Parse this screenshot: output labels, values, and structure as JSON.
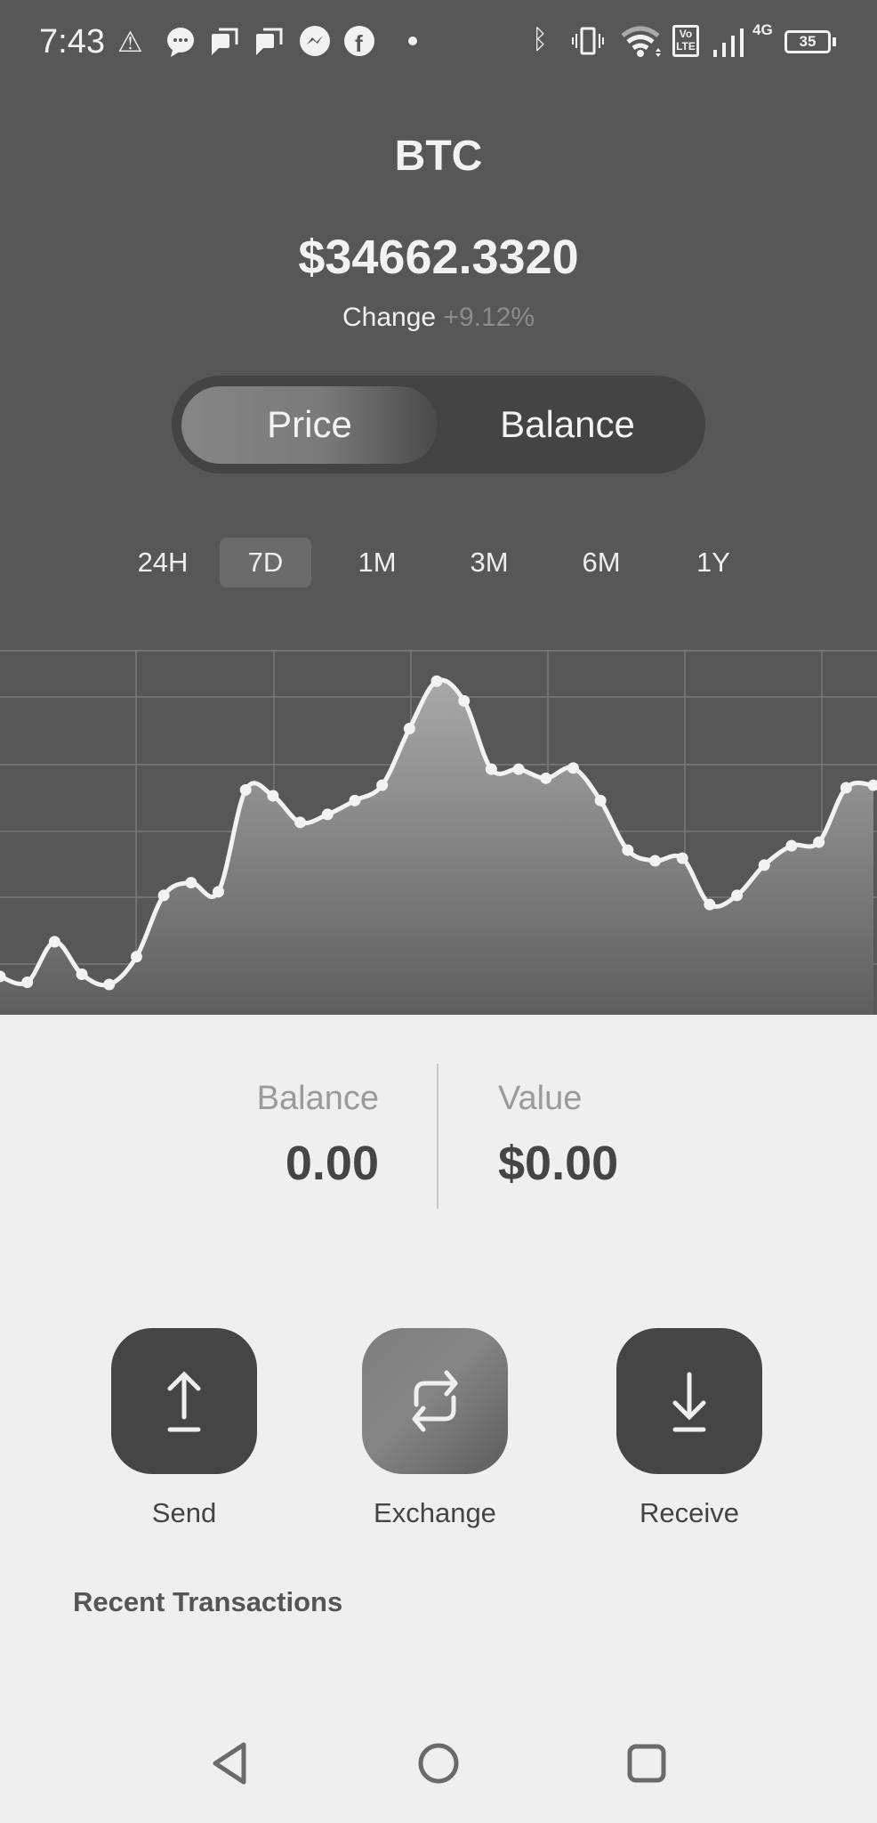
{
  "status_bar": {
    "time": "7:43",
    "left_icons": [
      "warning-icon",
      "message-icon",
      "chat-icon",
      "chat-icon",
      "messenger-icon",
      "facebook-icon",
      "dot-icon"
    ],
    "right_icons": [
      "bluetooth-icon",
      "vibrate-icon",
      "wifi-icon",
      "volte-icon",
      "signal-icon",
      "network-4g-icon",
      "battery-icon"
    ],
    "network": "4G",
    "volte": "Vo LTE",
    "battery": "35"
  },
  "header": {
    "title": "BTC",
    "price": "$34662.3320",
    "change_label": "Change",
    "change_value": "+9.12%"
  },
  "toggle": {
    "options": [
      "Price",
      "Balance"
    ],
    "selected": "Price"
  },
  "timeframes": {
    "options": [
      "24H",
      "7D",
      "1M",
      "3M",
      "6M",
      "1Y"
    ],
    "selected": "7D"
  },
  "chart_data": {
    "type": "area",
    "title": "",
    "xlabel": "",
    "ylabel": "",
    "grid": true,
    "values": [
      10.5,
      8.9,
      20.0,
      11.1,
      8.3,
      15.9,
      32.7,
      36.2,
      33.7,
      61.6,
      60.0,
      52.7,
      54.9,
      58.7,
      62.9,
      78.4,
      91.4,
      86.0,
      67.3,
      67.3,
      64.8,
      67.6,
      58.7,
      45.1,
      42.2,
      42.9,
      30.2,
      32.7,
      41.0,
      46.3,
      47.3,
      62.2,
      62.9
    ],
    "ylim": [
      0,
      100
    ],
    "colors": {
      "line": "#f2f2f2",
      "fill_top": "#a8a8a8",
      "fill_bottom": "#5e5e5e",
      "grid": "#7a7a7a"
    }
  },
  "summary": {
    "balance_label": "Balance",
    "balance_value": "0.00",
    "value_label": "Value",
    "value_value": "$0.00"
  },
  "actions": [
    {
      "label": "Send",
      "icon": "upload-icon"
    },
    {
      "label": "Exchange",
      "icon": "exchange-icon"
    },
    {
      "label": "Receive",
      "icon": "download-icon"
    }
  ],
  "recent_transactions_title": "Recent Transactions",
  "nav": [
    "back-icon",
    "home-icon",
    "recents-icon"
  ]
}
